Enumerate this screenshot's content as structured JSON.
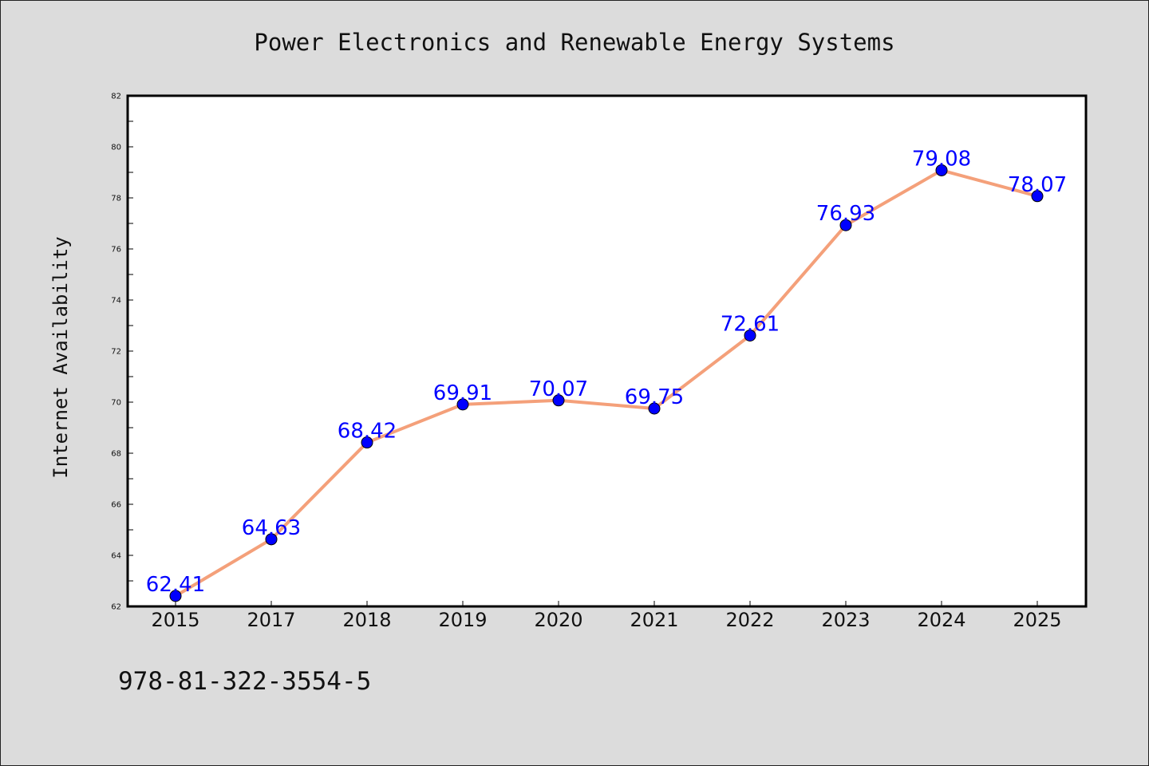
{
  "chart_data": {
    "type": "line",
    "title": "Power Electronics and Renewable Energy Systems",
    "xlabel": "",
    "ylabel": "Internet Availability",
    "categories": [
      "2015",
      "2017",
      "2018",
      "2019",
      "2020",
      "2021",
      "2022",
      "2023",
      "2024",
      "2025"
    ],
    "values": [
      62.41,
      64.63,
      68.42,
      69.91,
      70.07,
      69.75,
      72.61,
      76.93,
      79.08,
      78.07
    ],
    "data_labels": [
      "62.41",
      "64.63",
      "68.42",
      "69.91",
      "70.07",
      "69.75",
      "72.61",
      "76.93",
      "79.08",
      "78.07"
    ],
    "ylim": [
      62,
      82
    ],
    "yticks": [
      62,
      64,
      66,
      68,
      70,
      72,
      74,
      76,
      78,
      80,
      82
    ],
    "grid": false,
    "line_color": "#f4a07a",
    "marker_color": "#0000ff",
    "label_color": "#0000ff",
    "background_color": "#dcdcdc",
    "plot_background_color": "#ffffff"
  },
  "footer": {
    "isbn": "978-81-322-3554-5"
  }
}
